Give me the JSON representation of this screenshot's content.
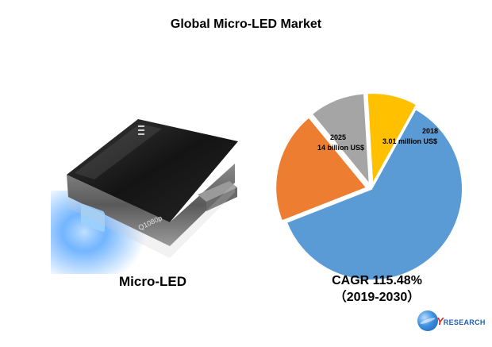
{
  "title": "Global Micro-LED Market",
  "product": {
    "label": "Micro-LED",
    "device_text": "Q1080p"
  },
  "cagr": {
    "line1": "CAGR 115.48%",
    "line2": "（2019-2030）"
  },
  "logo": {
    "prefix": "QY",
    "suffix": "RESEARCH"
  },
  "chart_data": {
    "type": "pie",
    "title": "",
    "slices": [
      {
        "value": 61,
        "color": "#5b9bd5"
      },
      {
        "value": 20,
        "color": "#ed7d31"
      },
      {
        "value": 10,
        "color": "#a5a5a5"
      },
      {
        "value": 9,
        "color": "#ffc000"
      }
    ],
    "annotations": [
      {
        "year": "2025",
        "value": "14 billion US$"
      },
      {
        "year": "2018",
        "value": "3.01 million US$"
      }
    ]
  }
}
